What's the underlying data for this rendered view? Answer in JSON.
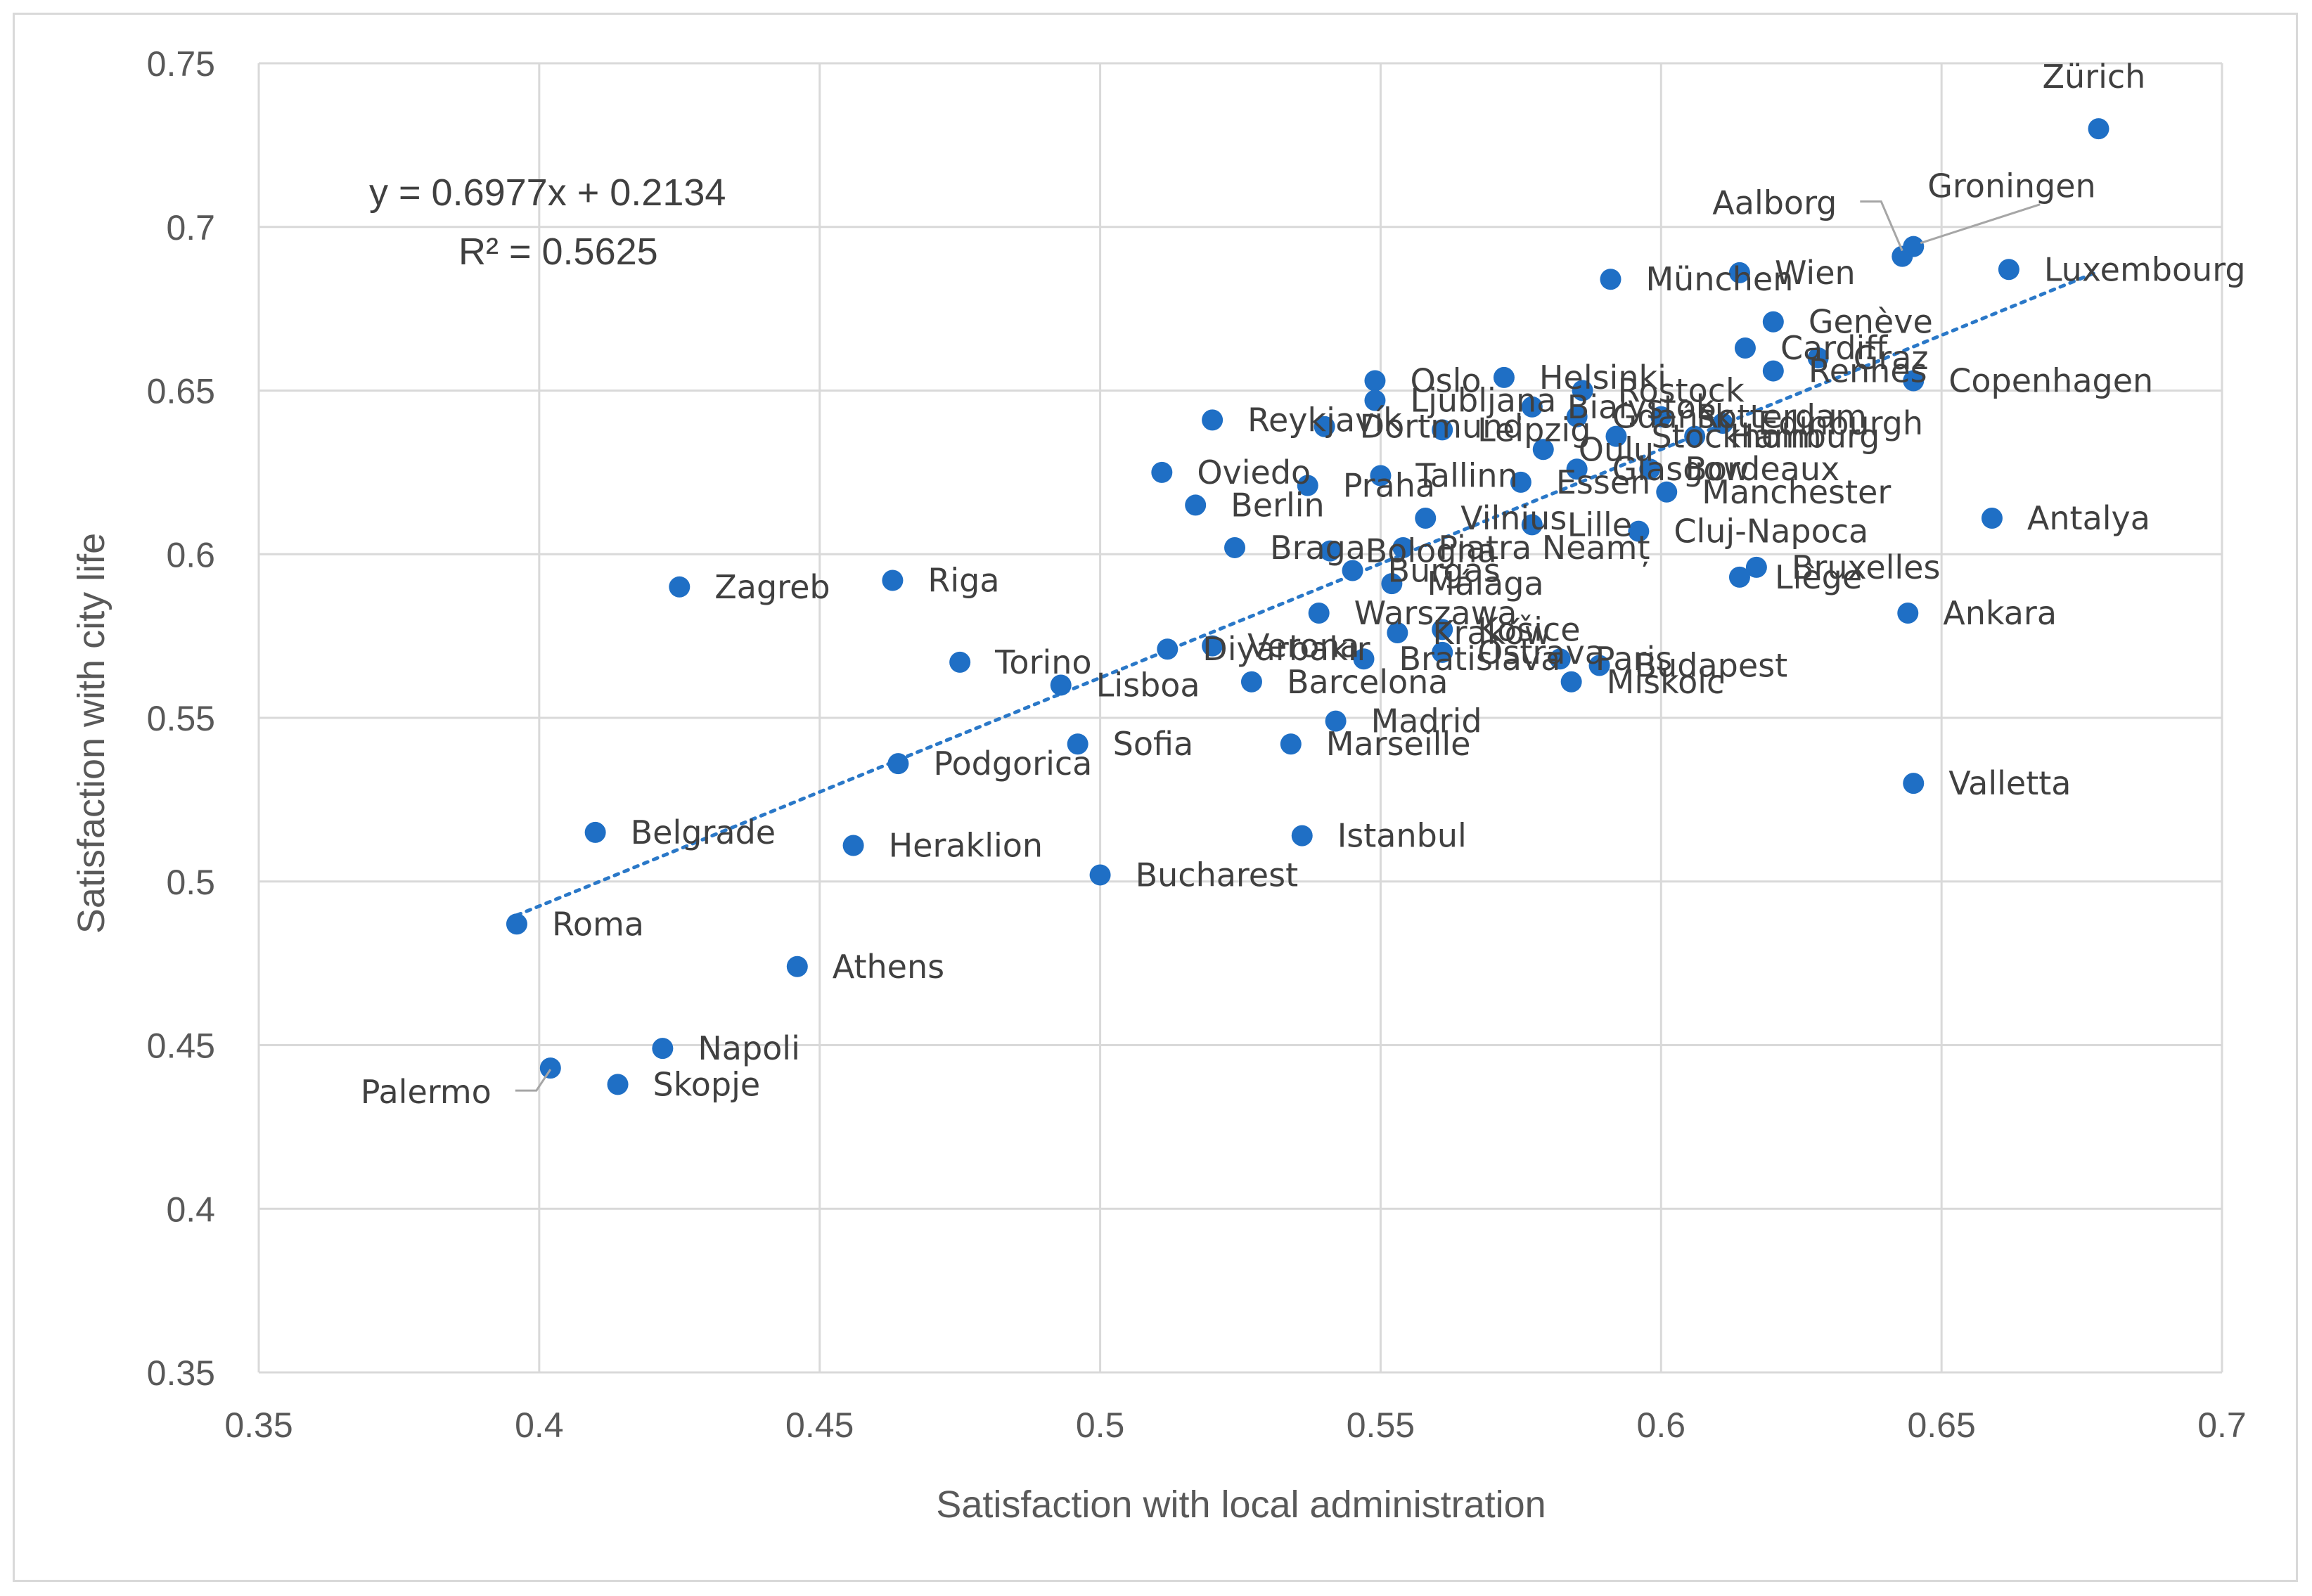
{
  "chart_data": {
    "type": "scatter",
    "xlabel": "Satisfaction with local administration",
    "ylabel": "Satisfaction with city life",
    "xlim": [
      0.35,
      0.7
    ],
    "ylim": [
      0.35,
      0.75
    ],
    "xticks": [
      "0.35",
      "0.4",
      "0.45",
      "0.5",
      "0.55",
      "0.6",
      "0.65",
      "0.7"
    ],
    "yticks": [
      "0.35",
      "0.4",
      "0.45",
      "0.5",
      "0.55",
      "0.6",
      "0.65",
      "0.7",
      "0.75"
    ],
    "grid": true,
    "point_color": "#1f6fc5",
    "trendline": {
      "equation": "y = 0.6977x + 0.2134",
      "r_squared": "R² = 0.5625",
      "slope": 0.6977,
      "intercept": 0.2134,
      "x_range": [
        0.396,
        0.678
      ],
      "style": "dotted",
      "color": "#2a78c8"
    },
    "points": [
      {
        "label": "Zürich",
        "x": 0.678,
        "y": 0.73
      },
      {
        "label": "Aalborg",
        "x": 0.643,
        "y": 0.691
      },
      {
        "label": "Groningen",
        "x": 0.645,
        "y": 0.694
      },
      {
        "label": "Luxembourg",
        "x": 0.662,
        "y": 0.687
      },
      {
        "label": "München",
        "x": 0.591,
        "y": 0.684
      },
      {
        "label": "Wien",
        "x": 0.614,
        "y": 0.686
      },
      {
        "label": "Genève",
        "x": 0.62,
        "y": 0.671
      },
      {
        "label": "Cardiff",
        "x": 0.615,
        "y": 0.663
      },
      {
        "label": "Graz",
        "x": 0.628,
        "y": 0.66
      },
      {
        "label": "Rennes",
        "x": 0.62,
        "y": 0.656
      },
      {
        "label": "Copenhagen",
        "x": 0.645,
        "y": 0.653
      },
      {
        "label": "Oslo",
        "x": 0.549,
        "y": 0.653
      },
      {
        "label": "Helsinki",
        "x": 0.572,
        "y": 0.654
      },
      {
        "label": "Rostock",
        "x": 0.586,
        "y": 0.65
      },
      {
        "label": "Reykjavík",
        "x": 0.52,
        "y": 0.641
      },
      {
        "label": "Ljubljana",
        "x": 0.549,
        "y": 0.647
      },
      {
        "label": "Dortmund",
        "x": 0.54,
        "y": 0.639
      },
      {
        "label": "Leipzig",
        "x": 0.561,
        "y": 0.638
      },
      {
        "label": "Białystok",
        "x": 0.577,
        "y": 0.645
      },
      {
        "label": "Gdańsk",
        "x": 0.585,
        "y": 0.642
      },
      {
        "label": "Stockholm",
        "x": 0.592,
        "y": 0.636
      },
      {
        "label": "Edinburgh",
        "x": 0.611,
        "y": 0.64
      },
      {
        "label": "Hamburg",
        "x": 0.606,
        "y": 0.636
      },
      {
        "label": "Rotterdam",
        "x": 0.6,
        "y": 0.642
      },
      {
        "label": "Oulu",
        "x": 0.579,
        "y": 0.632
      },
      {
        "label": "Bordeaux",
        "x": 0.598,
        "y": 0.626
      },
      {
        "label": "Glasgow",
        "x": 0.585,
        "y": 0.626
      },
      {
        "label": "Manchester",
        "x": 0.601,
        "y": 0.619
      },
      {
        "label": "Oviedo",
        "x": 0.511,
        "y": 0.625
      },
      {
        "label": "Praha",
        "x": 0.537,
        "y": 0.621
      },
      {
        "label": "Tallinn",
        "x": 0.55,
        "y": 0.624
      },
      {
        "label": "Essen",
        "x": 0.575,
        "y": 0.622
      },
      {
        "label": "Berlin",
        "x": 0.517,
        "y": 0.615
      },
      {
        "label": "Vilnius",
        "x": 0.558,
        "y": 0.611
      },
      {
        "label": "Lille",
        "x": 0.577,
        "y": 0.609
      },
      {
        "label": "Cluj-Napoca",
        "x": 0.596,
        "y": 0.607
      },
      {
        "label": "Braga",
        "x": 0.524,
        "y": 0.602
      },
      {
        "label": "Bologna",
        "x": 0.541,
        "y": 0.601
      },
      {
        "label": "Piatra Neamț",
        "x": 0.554,
        "y": 0.602
      },
      {
        "label": "Burgas",
        "x": 0.545,
        "y": 0.595
      },
      {
        "label": "Málaga",
        "x": 0.552,
        "y": 0.591
      },
      {
        "label": "Zagreb",
        "x": 0.425,
        "y": 0.59
      },
      {
        "label": "Riga",
        "x": 0.463,
        "y": 0.592
      },
      {
        "label": "Bruxelles",
        "x": 0.617,
        "y": 0.596
      },
      {
        "label": "Liège",
        "x": 0.614,
        "y": 0.593
      },
      {
        "label": "Antalya",
        "x": 0.659,
        "y": 0.611
      },
      {
        "label": "Ankara",
        "x": 0.644,
        "y": 0.582
      },
      {
        "label": "Warszawa",
        "x": 0.539,
        "y": 0.582
      },
      {
        "label": "Kraków",
        "x": 0.553,
        "y": 0.576
      },
      {
        "label": "Košice",
        "x": 0.561,
        "y": 0.577
      },
      {
        "label": "Torino",
        "x": 0.475,
        "y": 0.567
      },
      {
        "label": "Diyarbakır",
        "x": 0.512,
        "y": 0.571
      },
      {
        "label": "Verona",
        "x": 0.52,
        "y": 0.572
      },
      {
        "label": "Bratislava",
        "x": 0.547,
        "y": 0.568
      },
      {
        "label": "Ostrava",
        "x": 0.561,
        "y": 0.57
      },
      {
        "label": "Paris",
        "x": 0.582,
        "y": 0.568
      },
      {
        "label": "Budapest",
        "x": 0.589,
        "y": 0.566
      },
      {
        "label": "Miskolc",
        "x": 0.584,
        "y": 0.561
      },
      {
        "label": "Lisboa",
        "x": 0.493,
        "y": 0.56
      },
      {
        "label": "Barcelona",
        "x": 0.527,
        "y": 0.561
      },
      {
        "label": "Madrid",
        "x": 0.542,
        "y": 0.549
      },
      {
        "label": "Sofia",
        "x": 0.496,
        "y": 0.542
      },
      {
        "label": "Marseille",
        "x": 0.534,
        "y": 0.542
      },
      {
        "label": "Podgorica",
        "x": 0.464,
        "y": 0.536
      },
      {
        "label": "Valletta",
        "x": 0.645,
        "y": 0.53
      },
      {
        "label": "Belgrade",
        "x": 0.41,
        "y": 0.515
      },
      {
        "label": "Heraklion",
        "x": 0.456,
        "y": 0.511
      },
      {
        "label": "Istanbul",
        "x": 0.536,
        "y": 0.514
      },
      {
        "label": "Bucharest",
        "x": 0.5,
        "y": 0.502
      },
      {
        "label": "Roma",
        "x": 0.396,
        "y": 0.487
      },
      {
        "label": "Athens",
        "x": 0.446,
        "y": 0.474
      },
      {
        "label": "Napoli",
        "x": 0.422,
        "y": 0.449
      },
      {
        "label": "Palermo",
        "x": 0.402,
        "y": 0.443
      },
      {
        "label": "Skopje",
        "x": 0.414,
        "y": 0.438
      }
    ]
  }
}
